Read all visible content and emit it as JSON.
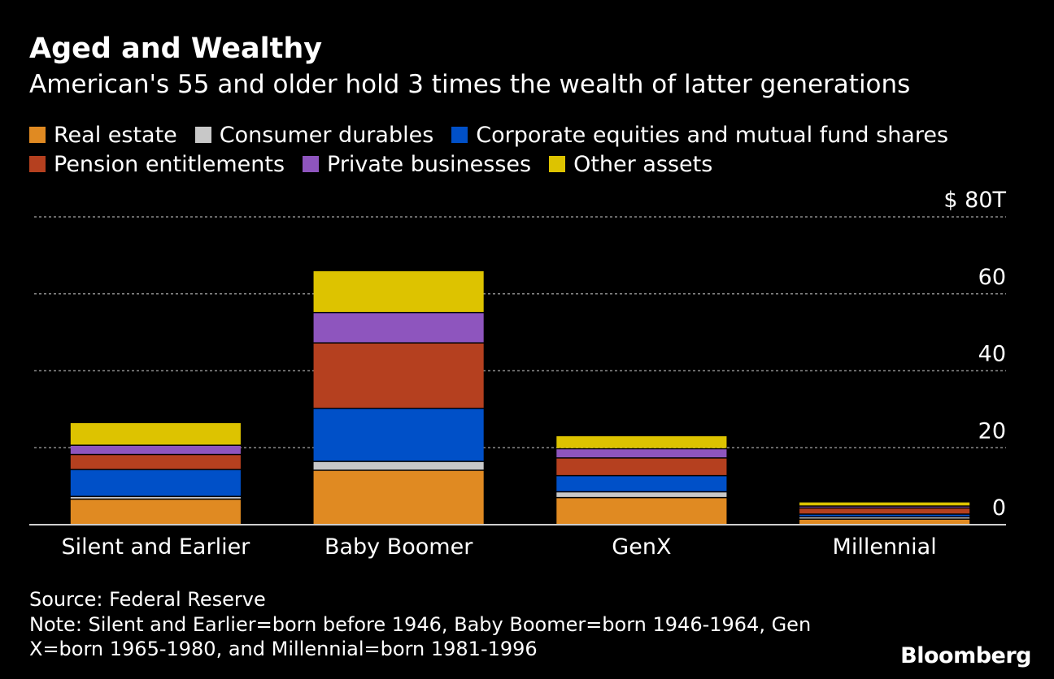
{
  "header": {
    "title": "Aged and Wealthy",
    "subtitle": "American's 55 and older hold 3 times the wealth of latter generations"
  },
  "chart_data": {
    "type": "bar",
    "stacked": true,
    "categories": [
      "Silent and Earlier",
      "Baby Boomer",
      "GenX",
      "Millennial"
    ],
    "series": [
      {
        "name": "Real estate",
        "color": "#E08A22",
        "values": [
          6.8,
          14.3,
          7.2,
          1.6
        ]
      },
      {
        "name": "Consumer durables",
        "color": "#C8C8C8",
        "values": [
          0.7,
          2.3,
          1.5,
          0.6
        ]
      },
      {
        "name": "Corporate equities and mutual fund shares",
        "color": "#0050C8",
        "values": [
          7.0,
          13.8,
          4.2,
          0.7
        ]
      },
      {
        "name": "Pension entitlements",
        "color": "#B5401F",
        "values": [
          3.9,
          17.0,
          4.6,
          1.6
        ]
      },
      {
        "name": "Private businesses",
        "color": "#8E55BE",
        "values": [
          2.4,
          7.9,
          2.4,
          0.5
        ]
      },
      {
        "name": "Other assets",
        "color": "#DDC300",
        "values": [
          5.9,
          10.9,
          3.4,
          1.1
        ]
      }
    ],
    "ylim": [
      0,
      80
    ],
    "yticks": [
      0,
      20,
      40,
      60,
      80
    ],
    "ytick_labels": [
      "0",
      "20",
      "40",
      "60",
      "$ 80T"
    ],
    "grid": true,
    "legend_position": "top"
  },
  "footer": {
    "source": "Source: Federal Reserve",
    "note": "Note: Silent and Earlier=born before 1946, Baby Boomer=born 1946-1964, Gen X=born 1965-1980, and Millennial=born 1981-1996",
    "brand": "Bloomberg"
  }
}
